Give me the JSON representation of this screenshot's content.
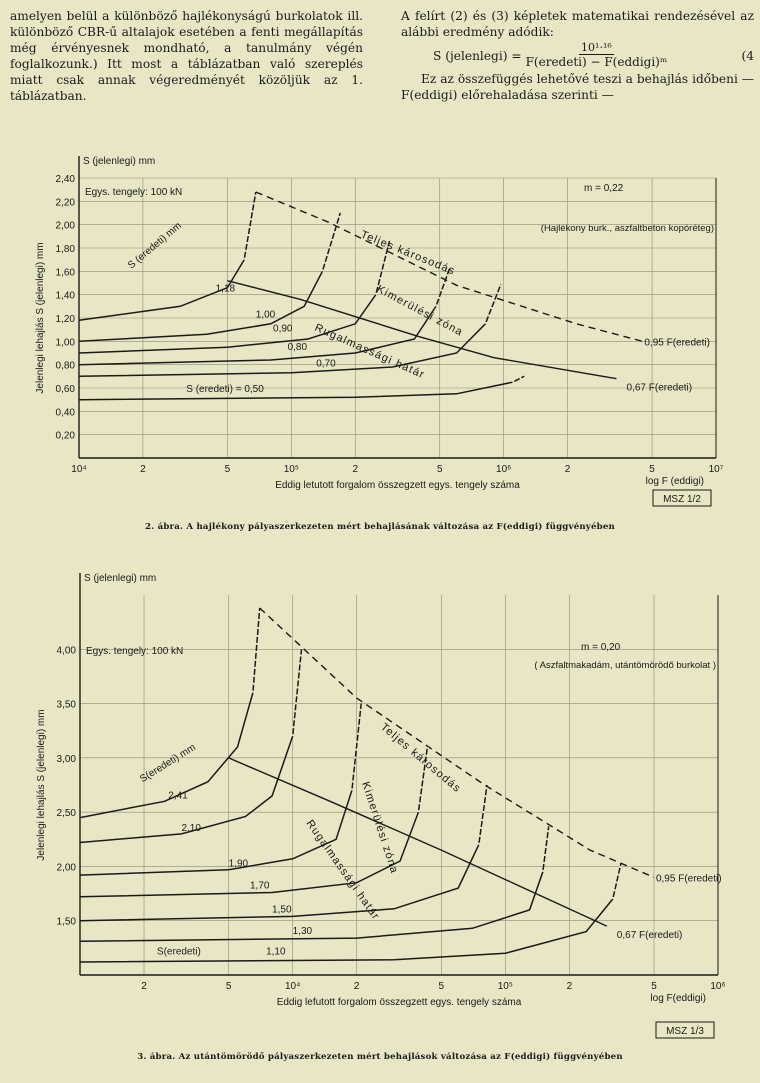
{
  "text": {
    "left_paragraph": "amelyen belül a különböző hajlékonyságú burkolatok ill. különböző CBR-ű altalajok esetében a fenti megállapítás még érvényesnek mondható, a tanulmány végén foglalkozunk.) Itt most a táblázatban való szereplés miatt csak annak végeredményét közöljük az 1. táblázatban.",
    "right_intro": "A felírt (2) és (3) képletek matematikai rendezésével az alábbi eredmény adódik:",
    "formula_lhs": "S (jelenlegi) =",
    "formula_num": "10¹·¹⁶",
    "formula_den": "F(eredeti) − F(eddigi)ᵐ",
    "formula_no": "(4",
    "right_after": "Ez az összefüggés lehetővé teszi a behajlás időbeni — F(eddigi) előrehaladása szerinti —"
  },
  "charts": [
    {
      "chart_data": {
        "type": "line",
        "y_axis_top_label": "S (jelenlegi) mm",
        "ylabel": "Jelenlegi lehajlás S (jelenlegi) mm",
        "xlabel": "Eddig letutott forgalom összegzett egys. tengely száma",
        "x_end_label": "log F (eddigi)",
        "x_scale": "log",
        "xlim": [
          10000,
          10000000
        ],
        "ylim": [
          0,
          2.4
        ],
        "x_ticks": [
          {
            "v": 10000,
            "l": "10⁴"
          },
          {
            "v": 20000,
            "l": "2"
          },
          {
            "v": 50000,
            "l": "5"
          },
          {
            "v": 100000,
            "l": "10⁵"
          },
          {
            "v": 200000,
            "l": "2"
          },
          {
            "v": 500000,
            "l": "5"
          },
          {
            "v": 1000000,
            "l": "10⁶"
          },
          {
            "v": 2000000,
            "l": "2"
          },
          {
            "v": 5000000,
            "l": "5"
          },
          {
            "v": 10000000,
            "l": "10⁷"
          }
        ],
        "y_ticks": [
          {
            "v": 0.2,
            "l": "0,20"
          },
          {
            "v": 0.4,
            "l": "0,40"
          },
          {
            "v": 0.6,
            "l": "0,60"
          },
          {
            "v": 0.8,
            "l": "0,80"
          },
          {
            "v": 1.0,
            "l": "1,00"
          },
          {
            "v": 1.2,
            "l": "1,20"
          },
          {
            "v": 1.4,
            "l": "1,40"
          },
          {
            "v": 1.6,
            "l": "1,60"
          },
          {
            "v": 1.8,
            "l": "1,80"
          },
          {
            "v": 2.0,
            "l": "2,00"
          },
          {
            "v": 2.2,
            "l": "2,20"
          },
          {
            "v": 2.4,
            "l": "2,40"
          }
        ],
        "annotations": [
          "Egys. tengely: 100 kN",
          "m = 0,22",
          "(Hajlékony burk., aszfaltbeton kopóréteg)"
        ],
        "series": [
          {
            "name": "1,18",
            "points": [
              [
                10000,
                1.18
              ],
              [
                30000,
                1.3
              ],
              [
                50000,
                1.46
              ],
              [
                60000,
                1.7
              ],
              [
                68000,
                2.28
              ]
            ]
          },
          {
            "name": "1,00",
            "points": [
              [
                10000,
                1.0
              ],
              [
                40000,
                1.06
              ],
              [
                80000,
                1.15
              ],
              [
                115000,
                1.3
              ],
              [
                140000,
                1.6
              ],
              [
                170000,
                2.1
              ]
            ]
          },
          {
            "name": "0,90",
            "points": [
              [
                10000,
                0.9
              ],
              [
                50000,
                0.95
              ],
              [
                120000,
                1.02
              ],
              [
                200000,
                1.15
              ],
              [
                250000,
                1.4
              ],
              [
                290000,
                1.86
              ]
            ]
          },
          {
            "name": "0,80",
            "points": [
              [
                10000,
                0.8
              ],
              [
                80000,
                0.84
              ],
              [
                200000,
                0.9
              ],
              [
                380000,
                1.02
              ],
              [
                480000,
                1.3
              ],
              [
                560000,
                1.64
              ]
            ]
          },
          {
            "name": "0,70",
            "points": [
              [
                10000,
                0.7
              ],
              [
                100000,
                0.73
              ],
              [
                300000,
                0.78
              ],
              [
                600000,
                0.9
              ],
              [
                820000,
                1.15
              ],
              [
                970000,
                1.49
              ]
            ]
          },
          {
            "name": "S (eredeti) = 0,50",
            "points": [
              [
                10000,
                0.5
              ],
              [
                200000,
                0.52
              ],
              [
                600000,
                0.55
              ],
              [
                1100000,
                0.65
              ],
              [
                1250000,
                0.7
              ]
            ]
          }
        ],
        "series_labels": [
          {
            "text": "S (eredeti) mm",
            "x": 18000,
            "y": 1.6
          },
          {
            "text": "1,18",
            "x": 44000,
            "y": 1.4
          },
          {
            "text": "1,00",
            "x": 68000,
            "y": 1.18
          },
          {
            "text": "0,90",
            "x": 82000,
            "y": 1.06
          },
          {
            "text": "0,80",
            "x": 96000,
            "y": 0.9
          },
          {
            "text": "0,70",
            "x": 131000,
            "y": 0.76
          },
          {
            "text": "S (eredeti) = 0,50",
            "x": 32000,
            "y": 0.54
          }
        ],
        "solid_line": {
          "points": [
            [
              50000,
              1.52
            ],
            [
              110000,
              1.36
            ],
            [
              400000,
              1.04
            ],
            [
              900000,
              0.86
            ],
            [
              3400000,
              0.68
            ]
          ],
          "end_label": "0,67 F(eredeti)"
        },
        "dashed_line": {
          "points": [
            [
              68000,
              2.28
            ],
            [
              150000,
              2.02
            ],
            [
              600000,
              1.48
            ],
            [
              2200000,
              1.15
            ],
            [
              4500000,
              1.0
            ]
          ],
          "end_label": "0,95 F(eredeti)"
        },
        "curve_labels": [
          "Teljes károsodás",
          "Kimerülési zóna",
          "Rugalmassági határ"
        ],
        "badge": "MSZ 1/2",
        "caption": "2. ábra. A hajlékony pályaszerkezeten mért behajlásának változása az F(eddigi) függvényében"
      }
    },
    {
      "chart_data": {
        "type": "line",
        "y_axis_top_label": "S (jelenlegi) mm",
        "ylabel": "Jelenlegi lehajlás S (jelenlegi) mm",
        "xlabel": "Eddig lefutott forgalom összegzett egys. tengely száma",
        "x_end_label": "log F(eddigi)",
        "x_scale": "log",
        "xlim": [
          1000,
          1000000
        ],
        "ylim": [
          1.0,
          4.5
        ],
        "x_ticks": [
          {
            "v": 2000,
            "l": "2"
          },
          {
            "v": 5000,
            "l": "5"
          },
          {
            "v": 10000,
            "l": "10⁴"
          },
          {
            "v": 20000,
            "l": "2"
          },
          {
            "v": 50000,
            "l": "5"
          },
          {
            "v": 100000,
            "l": "10⁵"
          },
          {
            "v": 200000,
            "l": "2"
          },
          {
            "v": 500000,
            "l": "5"
          },
          {
            "v": 1000000,
            "l": "10⁶"
          }
        ],
        "y_ticks": [
          {
            "v": 1.5,
            "l": "1,50"
          },
          {
            "v": 2.0,
            "l": "2,00"
          },
          {
            "v": 2.5,
            "l": "2,50"
          },
          {
            "v": 3.0,
            "l": "3,00"
          },
          {
            "v": 3.5,
            "l": "3,50"
          },
          {
            "v": 4.0,
            "l": "4,00"
          }
        ],
        "annotations": [
          "Egys. tengely: 100 kN",
          "m = 0,20",
          "( Aszfaltmakadám, utántömörödő burkolat )"
        ],
        "series": [
          {
            "name": "2,41",
            "points": [
              [
                1000,
                2.45
              ],
              [
                2500,
                2.6
              ],
              [
                4000,
                2.78
              ],
              [
                5500,
                3.1
              ],
              [
                6500,
                3.6
              ],
              [
                7000,
                4.38
              ]
            ]
          },
          {
            "name": "2,10",
            "points": [
              [
                1000,
                2.22
              ],
              [
                3000,
                2.3
              ],
              [
                6000,
                2.46
              ],
              [
                8000,
                2.65
              ],
              [
                10000,
                3.2
              ],
              [
                11000,
                4.0
              ]
            ]
          },
          {
            "name": "1,90",
            "points": [
              [
                1000,
                1.92
              ],
              [
                5000,
                1.97
              ],
              [
                10000,
                2.07
              ],
              [
                16000,
                2.25
              ],
              [
                19000,
                2.7
              ],
              [
                21000,
                3.5
              ]
            ]
          },
          {
            "name": "1,70",
            "points": [
              [
                1000,
                1.72
              ],
              [
                8000,
                1.76
              ],
              [
                20000,
                1.85
              ],
              [
                32000,
                2.05
              ],
              [
                39000,
                2.5
              ],
              [
                43000,
                3.1
              ]
            ]
          },
          {
            "name": "1,50",
            "points": [
              [
                1000,
                1.5
              ],
              [
                10000,
                1.54
              ],
              [
                30000,
                1.61
              ],
              [
                60000,
                1.8
              ],
              [
                75000,
                2.2
              ],
              [
                82000,
                2.75
              ]
            ]
          },
          {
            "name": "1,30",
            "points": [
              [
                1000,
                1.31
              ],
              [
                20000,
                1.34
              ],
              [
                70000,
                1.43
              ],
              [
                130000,
                1.6
              ],
              [
                150000,
                1.95
              ],
              [
                160000,
                2.37
              ]
            ]
          },
          {
            "name": "S(eredeti) 1,10",
            "points": [
              [
                1000,
                1.12
              ],
              [
                30000,
                1.14
              ],
              [
                100000,
                1.2
              ],
              [
                240000,
                1.4
              ],
              [
                320000,
                1.7
              ],
              [
                350000,
                2.03
              ]
            ]
          }
        ],
        "series_labels": [
          {
            "text": "S(eredeti) mm",
            "x": 2000,
            "y": 2.75
          },
          {
            "text": "2,41",
            "x": 2600,
            "y": 2.6
          },
          {
            "text": "2,10",
            "x": 3000,
            "y": 2.3
          },
          {
            "text": "1,90",
            "x": 5000,
            "y": 1.97
          },
          {
            "text": "1,70",
            "x": 6300,
            "y": 1.77
          },
          {
            "text": "1,50",
            "x": 8000,
            "y": 1.55
          },
          {
            "text": "1,30",
            "x": 10000,
            "y": 1.35
          },
          {
            "text": "S(eredeti)",
            "x": 2300,
            "y": 1.16
          },
          {
            "text": "1,10",
            "x": 7500,
            "y": 1.16
          }
        ],
        "solid_line": {
          "points": [
            [
              5000,
              3.0
            ],
            [
              15000,
              2.6
            ],
            [
              50000,
              2.15
            ],
            [
              150000,
              1.72
            ],
            [
              300000,
              1.45
            ]
          ],
          "end_label": "0,67 F(eredeti)"
        },
        "dashed_line": {
          "points": [
            [
              7000,
              4.38
            ],
            [
              20000,
              3.55
            ],
            [
              80000,
              2.75
            ],
            [
              250000,
              2.15
            ],
            [
              500000,
              1.9
            ]
          ],
          "end_label": "0,95 F(eredeti)"
        },
        "curve_labels": [
          "Teljes károsodás",
          "Kimerülési zóna",
          "Rugalmassági határ"
        ],
        "badge": "MSZ 1/3",
        "caption": "3. ábra. Az utántömörödő pályaszerkezeten mért behajlások változása az F(eddigi) függvényében"
      }
    }
  ]
}
